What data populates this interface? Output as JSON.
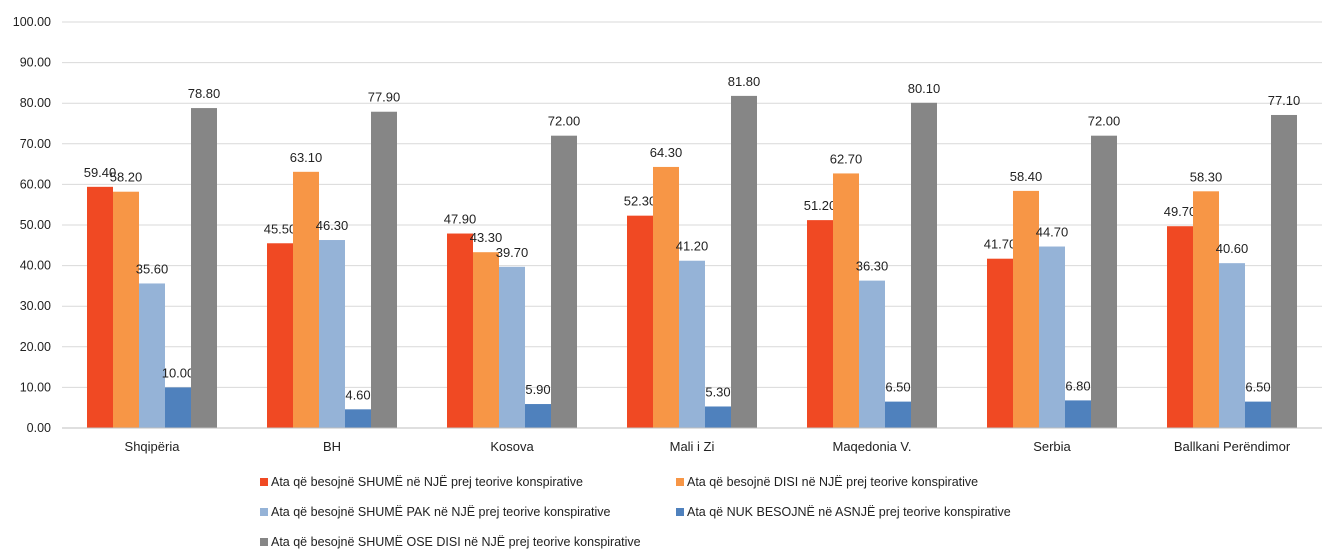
{
  "chart_data": {
    "type": "bar",
    "title": "",
    "xlabel": "",
    "ylabel": "",
    "ylim": [
      0,
      100
    ],
    "yticks": [
      "0.00",
      "10.00",
      "20.00",
      "30.00",
      "40.00",
      "50.00",
      "60.00",
      "70.00",
      "80.00",
      "90.00",
      "100.00"
    ],
    "grid": true,
    "legend_position": "bottom",
    "categories": [
      "Shqipëria",
      "BH",
      "Kosova",
      "Mali i Zi",
      "Maqedonia V.",
      "Serbia",
      "Ballkani Perëndimor"
    ],
    "series": [
      {
        "name": "Ata që besojnë SHUMË në NJË prej teorive konspirative",
        "color": "#f04923",
        "values": [
          59.4,
          45.5,
          47.9,
          52.3,
          51.2,
          41.7,
          49.7
        ],
        "labels": [
          "59.40",
          "45.50",
          "47.90",
          "52.30",
          "51.20",
          "41.70",
          "49.70"
        ]
      },
      {
        "name": "Ata që besojnë DISI në NJË prej teorive konspirative",
        "color": "#f79646",
        "values": [
          58.2,
          63.1,
          43.3,
          64.3,
          62.7,
          58.4,
          58.3
        ],
        "labels": [
          "58.20",
          "63.10",
          "43.30",
          "64.30",
          "62.70",
          "58.40",
          "58.30"
        ]
      },
      {
        "name": "Ata që besojnë SHUMË PAK në NJË prej teorive konspirative",
        "color": "#95b3d7",
        "values": [
          35.6,
          46.3,
          39.7,
          41.2,
          36.3,
          44.7,
          40.6
        ],
        "labels": [
          "35.60",
          "46.30",
          "39.70",
          "41.20",
          "36.30",
          "44.70",
          "40.60"
        ]
      },
      {
        "name": "Ata që NUK BESOJNË në ASNJË prej teorive konspirative",
        "color": "#4f81bd",
        "values": [
          10.0,
          4.6,
          5.9,
          5.3,
          6.5,
          6.8,
          6.5
        ],
        "labels": [
          "10.00",
          "4.60",
          "5.90",
          "5.30",
          "6.50",
          "6.80",
          "6.50"
        ]
      },
      {
        "name": "Ata që besojnë SHUMË OSE DISI në NJË prej teorive konspirative",
        "color": "#868686",
        "values": [
          78.8,
          77.9,
          72.0,
          81.8,
          80.1,
          72.0,
          77.1
        ],
        "labels": [
          "78.80",
          "77.90",
          "72.00",
          "81.80",
          "80.10",
          "72.00",
          "77.10"
        ]
      }
    ]
  }
}
